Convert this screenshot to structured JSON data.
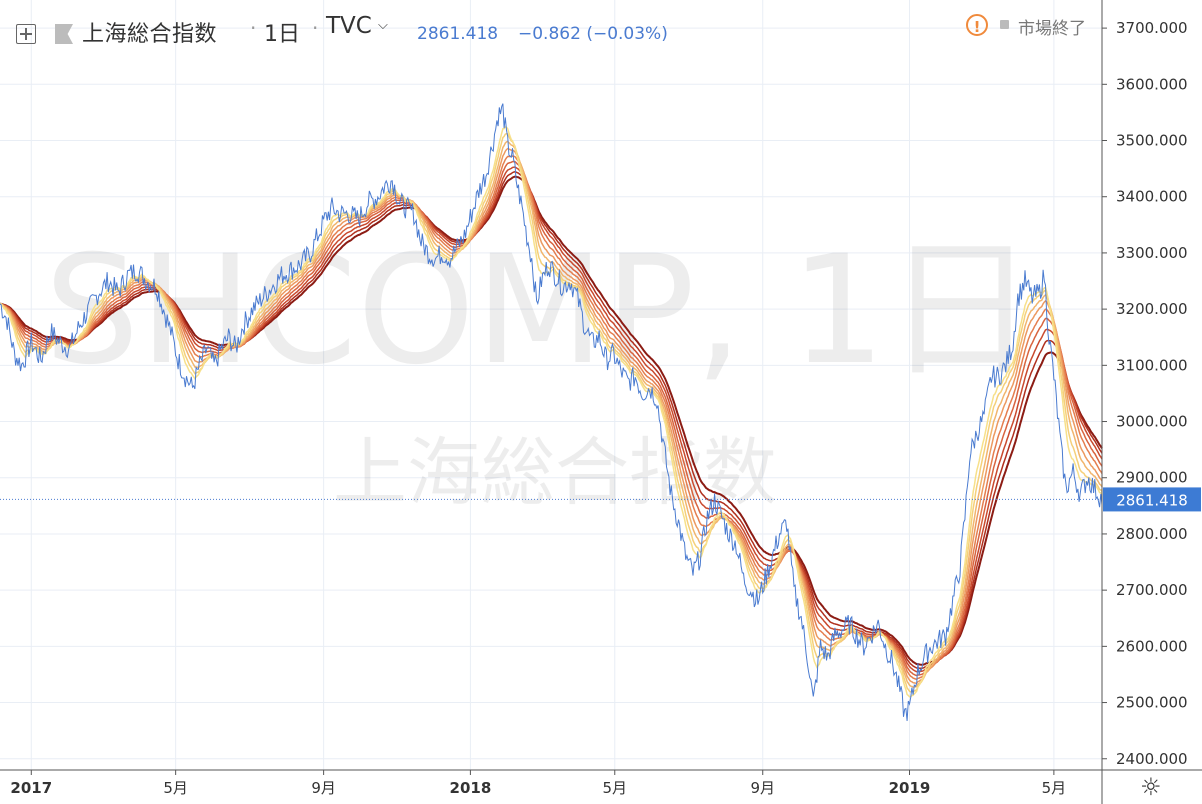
{
  "header": {
    "symbol_name": "上海総合指数",
    "resolution": "1日",
    "exchange": "TVC",
    "price": "2861.418",
    "change": "−0.862 (−0.03%)",
    "market_status": "市場終了",
    "separator": "·"
  },
  "watermark": {
    "line1": "SHCOMP, 1日",
    "line2": "上海総合指数"
  },
  "colors": {
    "price_line": "#4a7bd0",
    "ribbon": [
      "#8c1c14",
      "#b0301e",
      "#c94a2e",
      "#d8643f",
      "#e47e4f",
      "#ec9960",
      "#f1b56d",
      "#f5d07a",
      "#f7e08a"
    ],
    "grid": "#e9eef5",
    "axis": "#555555",
    "label_bg": "#3d7bd4",
    "warning": "#f08a3c"
  },
  "icons": {
    "add": "plus-box-icon",
    "flag": "flag-icon",
    "dropdown": "chevron-down-icon",
    "warning": "exclamation-circle-icon",
    "settings": "gear-icon"
  },
  "chart_data": {
    "type": "line",
    "title": "上海総合指数",
    "x_ticks": [
      {
        "label": "2017",
        "t": 0,
        "bold": true
      },
      {
        "label": "5月",
        "t": 120
      },
      {
        "label": "9月",
        "t": 243
      },
      {
        "label": "2018",
        "t": 365,
        "bold": true
      },
      {
        "label": "5月",
        "t": 485
      },
      {
        "label": "9月",
        "t": 608
      },
      {
        "label": "2019",
        "t": 730,
        "bold": true
      },
      {
        "label": "5月",
        "t": 850
      }
    ],
    "y_ticks": [
      2400,
      2500,
      2600,
      2700,
      2800,
      2900,
      3000,
      3100,
      3200,
      3300,
      3400,
      3500,
      3600,
      3700
    ],
    "y_tick_labels": [
      "2400.000",
      "2500.000",
      "2600.000",
      "2700.000",
      "2800.000",
      "2900.000",
      "3000.000",
      "3100.000",
      "3200.000",
      "3300.000",
      "3400.000",
      "3500.000",
      "3600.000",
      "3700.000"
    ],
    "ylim": [
      2380,
      3750
    ],
    "xlim_days": [
      -26,
      890
    ],
    "last_value": 2861.418,
    "last_label": "2861.418",
    "series": [
      {
        "type": "price",
        "points": [
          [
            -26,
            3210
          ],
          [
            -20,
            3180
          ],
          [
            -14,
            3120
          ],
          [
            -8,
            3100
          ],
          [
            0,
            3140
          ],
          [
            8,
            3110
          ],
          [
            16,
            3160
          ],
          [
            24,
            3140
          ],
          [
            32,
            3130
          ],
          [
            40,
            3170
          ],
          [
            48,
            3200
          ],
          [
            56,
            3230
          ],
          [
            64,
            3250
          ],
          [
            72,
            3230
          ],
          [
            80,
            3260
          ],
          [
            88,
            3270
          ],
          [
            96,
            3250
          ],
          [
            104,
            3240
          ],
          [
            110,
            3200
          ],
          [
            116,
            3160
          ],
          [
            122,
            3110
          ],
          [
            128,
            3080
          ],
          [
            134,
            3060
          ],
          [
            140,
            3100
          ],
          [
            146,
            3130
          ],
          [
            152,
            3100
          ],
          [
            158,
            3130
          ],
          [
            164,
            3150
          ],
          [
            170,
            3130
          ],
          [
            176,
            3170
          ],
          [
            184,
            3200
          ],
          [
            192,
            3220
          ],
          [
            200,
            3240
          ],
          [
            208,
            3260
          ],
          [
            216,
            3270
          ],
          [
            224,
            3280
          ],
          [
            232,
            3300
          ],
          [
            238,
            3330
          ],
          [
            244,
            3360
          ],
          [
            250,
            3380
          ],
          [
            256,
            3370
          ],
          [
            264,
            3370
          ],
          [
            272,
            3360
          ],
          [
            280,
            3390
          ],
          [
            288,
            3400
          ],
          [
            294,
            3420
          ],
          [
            300,
            3430
          ],
          [
            306,
            3390
          ],
          [
            312,
            3380
          ],
          [
            318,
            3370
          ],
          [
            324,
            3320
          ],
          [
            330,
            3300
          ],
          [
            336,
            3290
          ],
          [
            342,
            3300
          ],
          [
            348,
            3290
          ],
          [
            354,
            3310
          ],
          [
            360,
            3330
          ],
          [
            366,
            3370
          ],
          [
            372,
            3410
          ],
          [
            378,
            3440
          ],
          [
            384,
            3500
          ],
          [
            388,
            3545
          ],
          [
            392,
            3555
          ],
          [
            396,
            3490
          ],
          [
            400,
            3470
          ],
          [
            404,
            3420
          ],
          [
            408,
            3380
          ],
          [
            412,
            3330
          ],
          [
            416,
            3290
          ],
          [
            420,
            3210
          ],
          [
            424,
            3250
          ],
          [
            430,
            3280
          ],
          [
            436,
            3260
          ],
          [
            442,
            3240
          ],
          [
            448,
            3250
          ],
          [
            454,
            3220
          ],
          [
            460,
            3170
          ],
          [
            466,
            3140
          ],
          [
            472,
            3150
          ],
          [
            478,
            3110
          ],
          [
            484,
            3120
          ],
          [
            490,
            3090
          ],
          [
            496,
            3070
          ],
          [
            502,
            3080
          ],
          [
            508,
            3050
          ],
          [
            514,
            3060
          ],
          [
            520,
            3040
          ],
          [
            526,
            2950
          ],
          [
            532,
            2870
          ],
          [
            538,
            2820
          ],
          [
            544,
            2760
          ],
          [
            550,
            2730
          ],
          [
            556,
            2760
          ],
          [
            562,
            2830
          ],
          [
            568,
            2860
          ],
          [
            574,
            2830
          ],
          [
            580,
            2800
          ],
          [
            586,
            2780
          ],
          [
            592,
            2720
          ],
          [
            598,
            2700
          ],
          [
            604,
            2680
          ],
          [
            610,
            2720
          ],
          [
            616,
            2760
          ],
          [
            622,
            2800
          ],
          [
            628,
            2820
          ],
          [
            634,
            2700
          ],
          [
            640,
            2650
          ],
          [
            646,
            2570
          ],
          [
            650,
            2500
          ],
          [
            656,
            2600
          ],
          [
            662,
            2580
          ],
          [
            668,
            2620
          ],
          [
            674,
            2630
          ],
          [
            680,
            2640
          ],
          [
            686,
            2620
          ],
          [
            692,
            2600
          ],
          [
            698,
            2620
          ],
          [
            704,
            2640
          ],
          [
            710,
            2600
          ],
          [
            716,
            2570
          ],
          [
            722,
            2520
          ],
          [
            726,
            2480
          ],
          [
            730,
            2490
          ],
          [
            736,
            2550
          ],
          [
            742,
            2580
          ],
          [
            748,
            2600
          ],
          [
            754,
            2610
          ],
          [
            760,
            2620
          ],
          [
            766,
            2680
          ],
          [
            772,
            2740
          ],
          [
            776,
            2830
          ],
          [
            780,
            2940
          ],
          [
            786,
            2980
          ],
          [
            792,
            3010
          ],
          [
            798,
            3080
          ],
          [
            804,
            3080
          ],
          [
            810,
            3100
          ],
          [
            816,
            3140
          ],
          [
            820,
            3220
          ],
          [
            826,
            3250
          ],
          [
            832,
            3220
          ],
          [
            838,
            3230
          ],
          [
            842,
            3260
          ],
          [
            846,
            3150
          ],
          [
            850,
            3080
          ],
          [
            856,
            2950
          ],
          [
            860,
            2880
          ],
          [
            866,
            2910
          ],
          [
            872,
            2870
          ],
          [
            878,
            2900
          ],
          [
            884,
            2880
          ],
          [
            890,
            2861
          ]
        ]
      }
    ]
  }
}
